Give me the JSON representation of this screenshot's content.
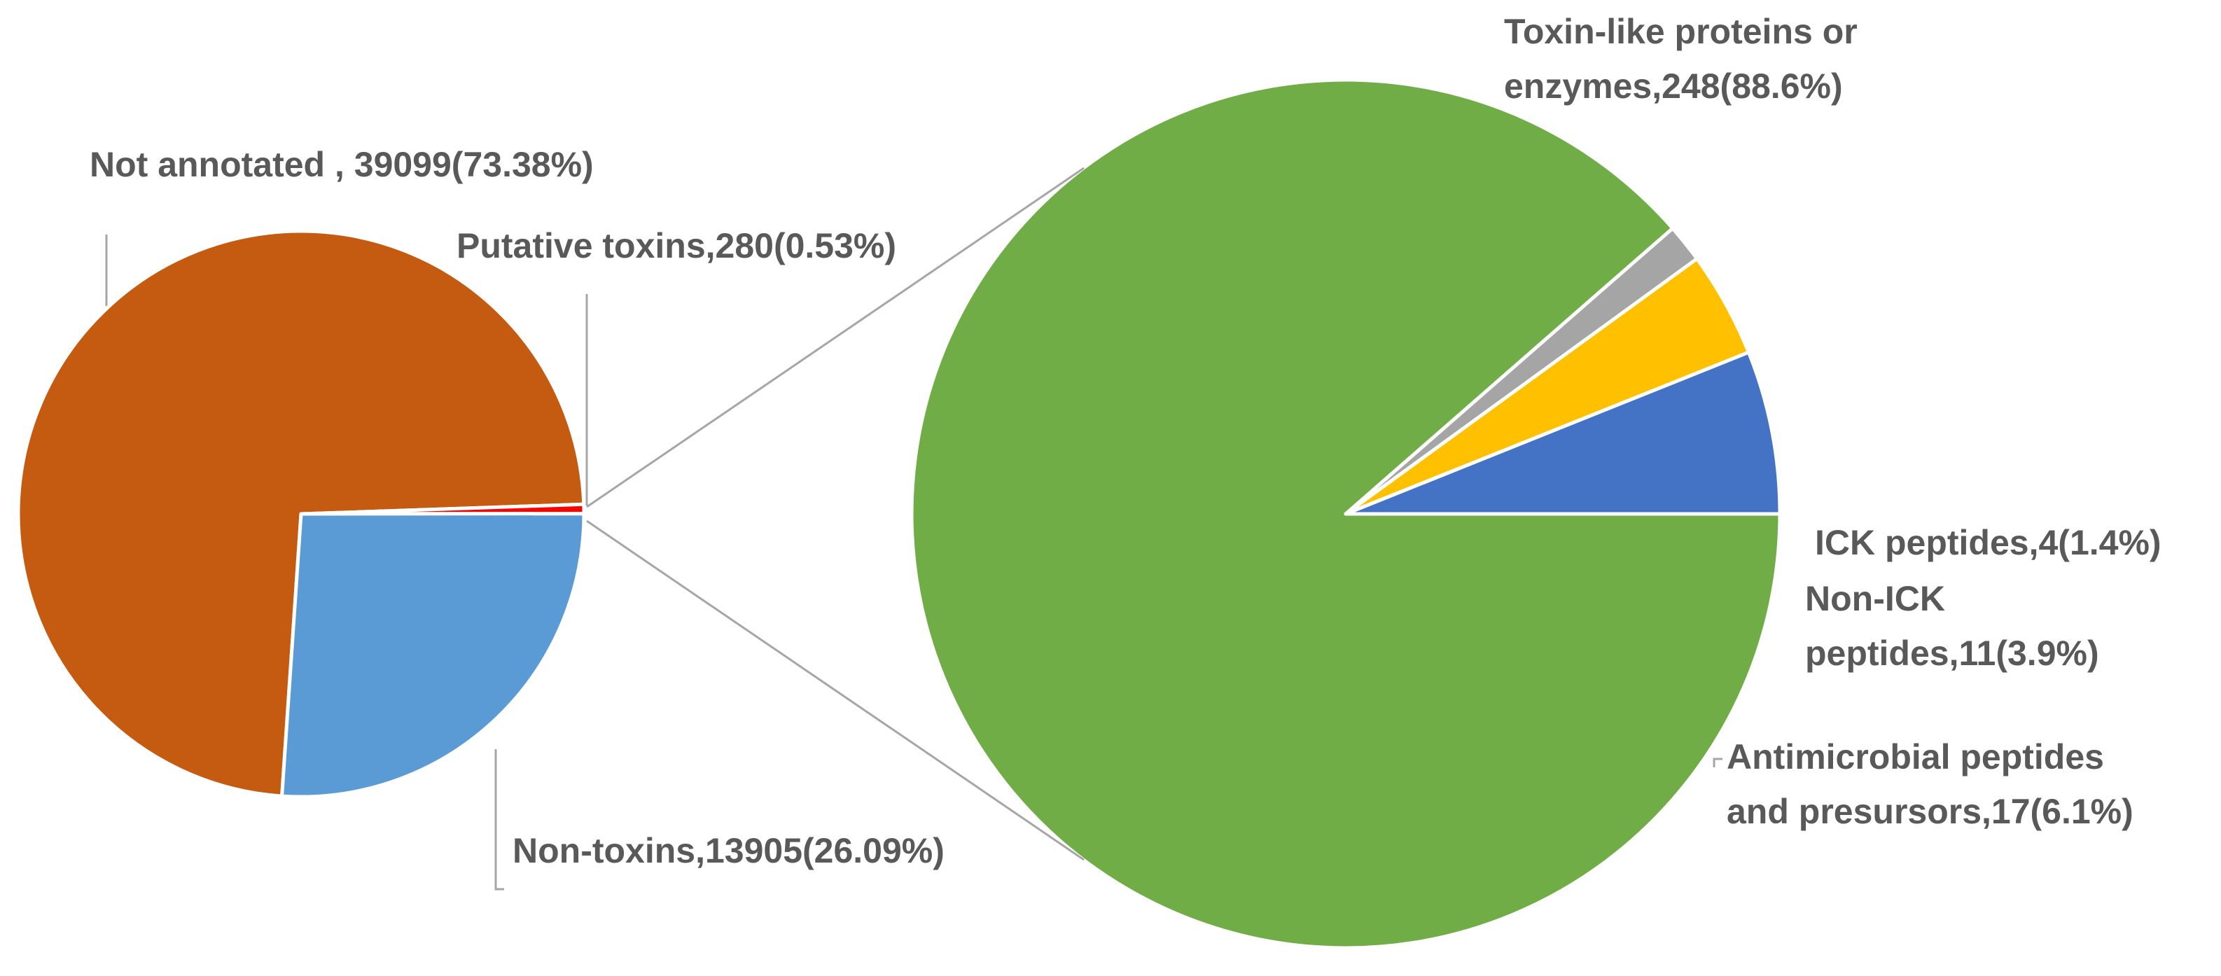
{
  "chart_data": [
    {
      "type": "pie",
      "title": "",
      "slices": [
        {
          "name": "Not annotated",
          "value": 39099,
          "percent": 73.38,
          "color": "#C55A11",
          "label_lines": [
            "Not annotated , 39099(73.38%)"
          ]
        },
        {
          "name": "Putative toxins",
          "value": 280,
          "percent": 0.53,
          "color": "#FF0000",
          "label_lines": [
            "Putative toxins,280(0.53%)"
          ]
        },
        {
          "name": "Non-toxins",
          "value": 13905,
          "percent": 26.09,
          "color": "#5B9BD5",
          "label_lines": [
            "Non-toxins,13905(26.09%)"
          ]
        }
      ]
    },
    {
      "type": "pie",
      "title": "",
      "detail_of": "Putative toxins",
      "slices": [
        {
          "name": "Toxin-like proteins or enzymes",
          "value": 248,
          "percent": 88.6,
          "color": "#70AD47",
          "label_lines": [
            "Toxin-like proteins or",
            "enzymes,248(88.6%)"
          ]
        },
        {
          "name": "ICK peptides",
          "value": 4,
          "percent": 1.4,
          "color": "#A5A5A5",
          "label_lines": [
            "ICK peptides,4(1.4%)"
          ]
        },
        {
          "name": "Non-ICK peptides",
          "value": 11,
          "percent": 3.9,
          "color": "#FFC000",
          "label_lines": [
            "Non-ICK",
            "peptides,11(3.9%)"
          ]
        },
        {
          "name": "Antimicrobial peptides and presursors",
          "value": 17,
          "percent": 6.1,
          "color": "#4472C4",
          "label_lines": [
            "Antimicrobial peptides",
            "and presursors,17(6.1%)"
          ]
        }
      ]
    }
  ]
}
